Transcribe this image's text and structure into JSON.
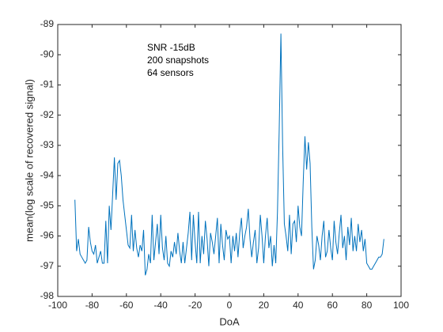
{
  "chart_data": {
    "type": "line",
    "xlabel": "DoA",
    "ylabel": "mean(log scale of recovered signal)",
    "annotations": [
      "SNR -15dB",
      "200 snapshots",
      "64 sensors"
    ],
    "xlim": [
      -100,
      100
    ],
    "xticks": [
      -100,
      -80,
      -60,
      -40,
      -20,
      0,
      20,
      40,
      60,
      80,
      100
    ],
    "ylim": [
      -98,
      -89
    ],
    "yticks": [
      -98,
      -97,
      -96,
      -95,
      -94,
      -93,
      -92,
      -91,
      -90,
      -89
    ],
    "grid": false,
    "x": [
      -90,
      -89,
      -88,
      -87,
      -86,
      -85,
      -84,
      -83,
      -82,
      -81,
      -80,
      -79,
      -78,
      -77,
      -76,
      -75,
      -74,
      -73,
      -72,
      -71,
      -70,
      -69,
      -68,
      -67,
      -66,
      -65,
      -64,
      -63,
      -62,
      -61,
      -60,
      -59,
      -58,
      -57,
      -56,
      -55,
      -54,
      -53,
      -52,
      -51,
      -50,
      -49,
      -48,
      -47,
      -46,
      -45,
      -44,
      -43,
      -42,
      -41,
      -40,
      -39,
      -38,
      -37,
      -36,
      -35,
      -34,
      -33,
      -32,
      -31,
      -30,
      -29,
      -28,
      -27,
      -26,
      -25,
      -24,
      -23,
      -22,
      -21,
      -20,
      -19,
      -18,
      -17,
      -16,
      -15,
      -14,
      -13,
      -12,
      -11,
      -10,
      -9,
      -8,
      -7,
      -6,
      -5,
      -4,
      -3,
      -2,
      -1,
      0,
      1,
      2,
      3,
      4,
      5,
      6,
      7,
      8,
      9,
      10,
      11,
      12,
      13,
      14,
      15,
      16,
      17,
      18,
      19,
      20,
      21,
      22,
      23,
      24,
      25,
      26,
      27,
      28,
      29,
      30,
      31,
      32,
      33,
      34,
      35,
      36,
      37,
      38,
      39,
      40,
      41,
      42,
      43,
      44,
      45,
      46,
      47,
      48,
      49,
      50,
      51,
      52,
      53,
      54,
      55,
      56,
      57,
      58,
      59,
      60,
      61,
      62,
      63,
      64,
      65,
      66,
      67,
      68,
      69,
      70,
      71,
      72,
      73,
      74,
      75,
      76,
      77,
      78,
      79,
      80,
      81,
      82,
      83,
      84,
      85,
      86,
      87,
      88,
      89,
      90
    ],
    "series": [
      {
        "color": "#0072bd",
        "values": [
          -94.8,
          -96.5,
          -96.1,
          -96.6,
          -96.7,
          -96.8,
          -96.9,
          -96.8,
          -95.7,
          -96.2,
          -96.5,
          -96.6,
          -96.3,
          -96.9,
          -96.7,
          -96.5,
          -96.9,
          -96.9,
          -95.5,
          -96.9,
          -95.0,
          -95.8,
          -94.6,
          -93.4,
          -94.8,
          -93.6,
          -93.5,
          -94.0,
          -94.8,
          -95.3,
          -95.8,
          -96.3,
          -96.4,
          -95.3,
          -96.5,
          -95.8,
          -96.4,
          -96.7,
          -96.3,
          -96.5,
          -95.8,
          -97.3,
          -97.1,
          -96.6,
          -96.9,
          -95.3,
          -96.8,
          -96.2,
          -95.6,
          -96.6,
          -95.3,
          -96.4,
          -96.8,
          -96.0,
          -96.9,
          -97.0,
          -96.5,
          -96.7,
          -96.2,
          -96.6,
          -95.9,
          -96.5,
          -96.9,
          -96.2,
          -96.9,
          -96.4,
          -95.9,
          -95.2,
          -96.8,
          -95.3,
          -96.2,
          -96.9,
          -95.2,
          -96.9,
          -96.0,
          -96.6,
          -95.5,
          -96.1,
          -97.0,
          -95.9,
          -96.2,
          -96.6,
          -96.0,
          -95.4,
          -96.9,
          -95.6,
          -96.3,
          -96.8,
          -95.8,
          -96.1,
          -96.0,
          -96.9,
          -96.0,
          -96.5,
          -95.9,
          -96.7,
          -95.9,
          -95.4,
          -96.4,
          -96.0,
          -95.7,
          -95.1,
          -96.1,
          -96.7,
          -96.2,
          -95.8,
          -96.9,
          -96.4,
          -95.3,
          -96.0,
          -96.9,
          -96.0,
          -95.4,
          -96.4,
          -96.0,
          -97.0,
          -96.3,
          -96.9,
          -95.2,
          -92.5,
          -89.3,
          -93.0,
          -95.6,
          -96.0,
          -96.5,
          -95.3,
          -96.6,
          -95.6,
          -95.5,
          -96.2,
          -95.0,
          -95.7,
          -96.0,
          -94.2,
          -92.7,
          -93.8,
          -92.9,
          -93.6,
          -95.7,
          -97.1,
          -96.8,
          -96.0,
          -96.3,
          -96.8,
          -96.0,
          -95.5,
          -96.7,
          -96.5,
          -95.8,
          -96.4,
          -96.8,
          -95.5,
          -96.2,
          -96.6,
          -95.9,
          -95.3,
          -96.4,
          -96.0,
          -96.8,
          -95.7,
          -96.3,
          -95.4,
          -96.5,
          -96.0,
          -96.5,
          -95.6,
          -96.2,
          -95.8,
          -96.5,
          -96.1,
          -96.9,
          -97.0,
          -97.1,
          -97.1,
          -97.0,
          -96.9,
          -96.8,
          -96.7,
          -96.7,
          -96.6,
          -96.1
        ]
      }
    ]
  }
}
